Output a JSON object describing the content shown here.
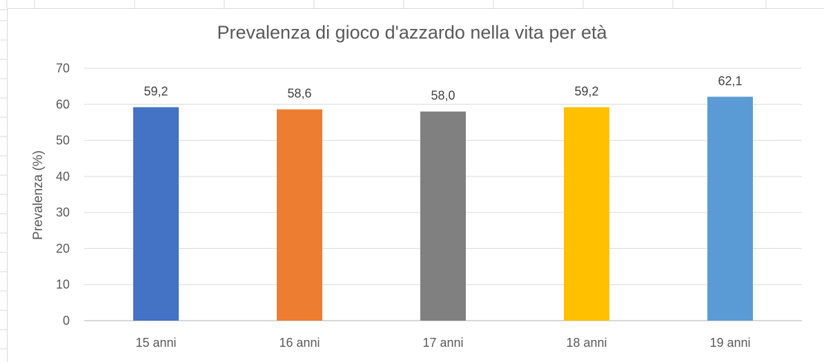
{
  "colors": {
    "grid": "#d9d9d9",
    "axis": "#bfbfbf",
    "text": "#595959"
  },
  "chart_data": {
    "type": "bar",
    "title": "Prevalenza di gioco d'azzardo nella vita per età",
    "xlabel": "",
    "ylabel": "Prevalenza (%)",
    "categories": [
      "15 anni",
      "16 anni",
      "17 anni",
      "18 anni",
      "19 anni"
    ],
    "values": [
      59.2,
      58.6,
      58.0,
      59.2,
      62.1
    ],
    "data_labels": [
      "59,2",
      "58,6",
      "58,0",
      "59,2",
      "62,1"
    ],
    "bar_colors": [
      "#4472c4",
      "#ed7d31",
      "#808080",
      "#ffc000",
      "#5b9bd5"
    ],
    "ylim": [
      0,
      70
    ],
    "yticks": [
      0,
      10,
      20,
      30,
      40,
      50,
      60,
      70
    ],
    "grid": true,
    "legend": "none"
  }
}
